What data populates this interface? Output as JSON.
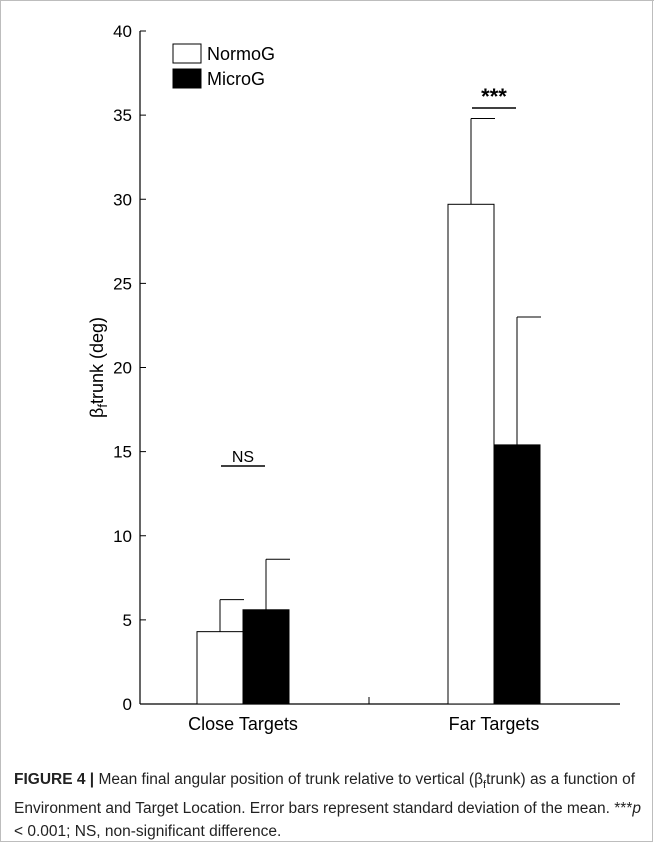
{
  "chart_data": {
    "type": "bar",
    "ylabel": "β",
    "ylabel_sub": "f",
    "ylabel_rest": "trunk (deg)",
    "ylim": [
      0,
      40
    ],
    "yticks": [
      0,
      5,
      10,
      15,
      20,
      25,
      30,
      35,
      40
    ],
    "categories": [
      "Close Targets",
      "Far Targets"
    ],
    "series": [
      {
        "name": "NormoG",
        "values": [
          4.3,
          29.7
        ],
        "errors": [
          1.9,
          5.1
        ],
        "color": "#ffffff"
      },
      {
        "name": "MicroG",
        "values": [
          5.6,
          15.4
        ],
        "errors": [
          3.0,
          7.6
        ],
        "color": "#000000"
      }
    ],
    "legend_position": "top-left",
    "annotations": [
      {
        "category": "Close Targets",
        "label": "NS"
      },
      {
        "category": "Far Targets",
        "label": "***"
      }
    ]
  },
  "caption": {
    "label": "FIGURE 4 |",
    "text": " Mean final angular position of trunk relative to vertical (β",
    "sub": "f",
    "text2": "trunk) as a function of Environment and Target Location. Error bars represent standard deviation of the mean. ***",
    "p": "p",
    "text3": " < 0.001; NS, non-significant difference."
  }
}
